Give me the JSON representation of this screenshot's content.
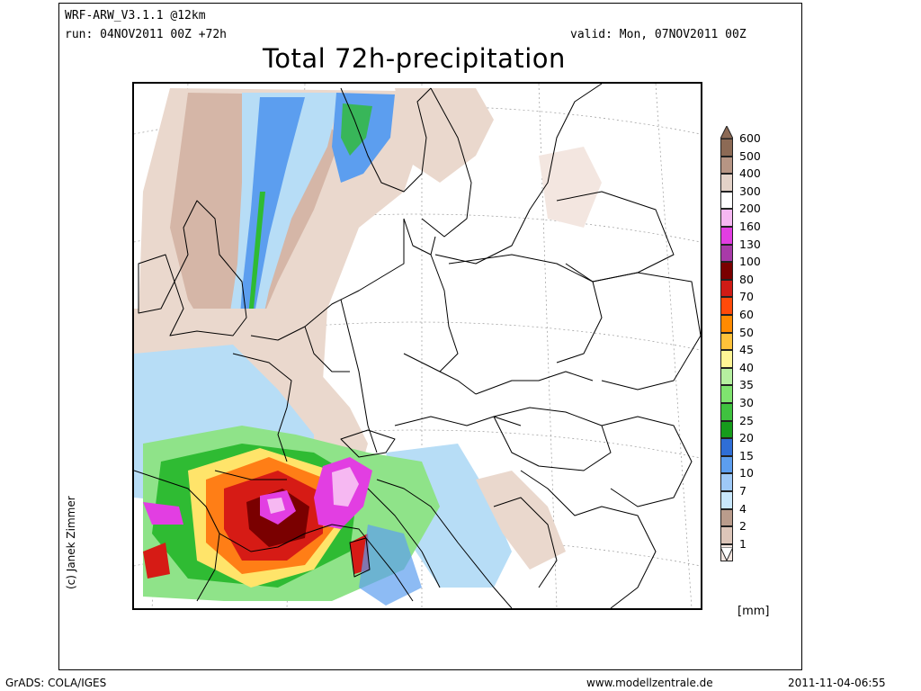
{
  "header": {
    "model": "WRF-ARW_V3.1.1 @12km",
    "run": "run: 04NOV2011 00Z +72h",
    "valid": "valid: Mon, 07NOV2011 00Z"
  },
  "title": "Total 72h-precipitation",
  "credit": "(c) Janek Zimmer",
  "legend": {
    "unit": "[mm]",
    "levels": [
      "600",
      "500",
      "400",
      "300",
      "200",
      "160",
      "130",
      "100",
      "80",
      "70",
      "60",
      "50",
      "45",
      "40",
      "35",
      "30",
      "25",
      "20",
      "15",
      "10",
      "7",
      "4",
      "2",
      "1"
    ],
    "colors": [
      "#8c6a55",
      "#b69584",
      "#e3d2c8",
      "#ffffff",
      "#f6b8f2",
      "#e23ee2",
      "#a83aa8",
      "#7a0000",
      "#cf1b15",
      "#ff4a0a",
      "#ff8a00",
      "#ffc23a",
      "#fff596",
      "#b6f0a0",
      "#7fe36f",
      "#3fc23f",
      "#169c1c",
      "#2f6ed6",
      "#5c9eef",
      "#9ec9f7",
      "#c9e7fb",
      "#b99c8c",
      "#dcc5b9",
      "#f3e6e0"
    ],
    "arrow_top_color": "#8c6a55",
    "arrow_bottom_color": "#ffffff"
  },
  "footer": {
    "left": "GrADS: COLA/IGES",
    "center": "www.modellzentrale.de",
    "right": "2011-11-04-06:55"
  },
  "map_colors": {
    "tan_light": "#ead8cd",
    "tan": "#cfae9e",
    "blue_light": "#b7ddf6",
    "blue": "#5c9eef",
    "blue_dark": "#2f6ed6",
    "green_light": "#8fe389",
    "green": "#2fbb33",
    "yellow": "#ffe46a",
    "orange": "#ff7e16",
    "red": "#d61b15",
    "darkred": "#7a0000",
    "magenta": "#e23ee2",
    "pink": "#f6b8f2",
    "border": "#000000"
  }
}
